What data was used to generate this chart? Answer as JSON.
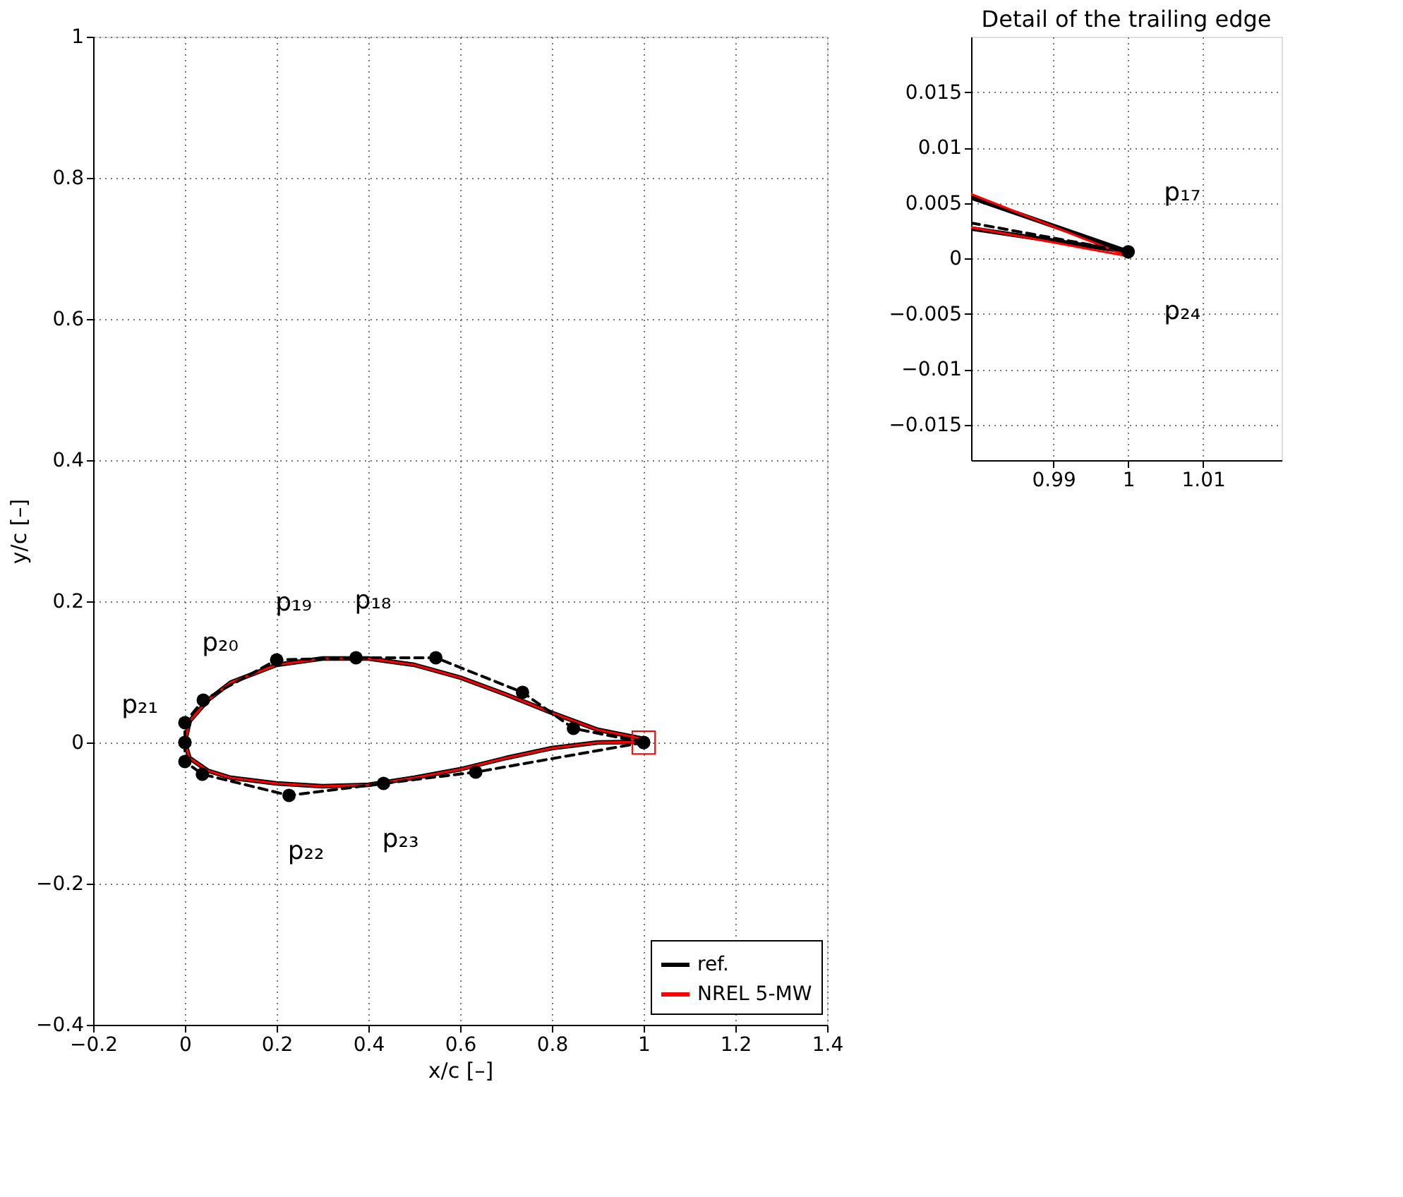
{
  "chart_data": [
    {
      "type": "line",
      "xlabel": "x/c [–]",
      "ylabel": "y/c [–]",
      "xlim": [
        -0.2,
        1.4
      ],
      "ylim": [
        -0.4,
        1
      ],
      "xticks": [
        -0.2,
        0,
        0.2,
        0.4,
        0.6,
        0.8,
        1,
        1.2,
        1.4
      ],
      "yticks": [
        -0.4,
        -0.2,
        0,
        0.2,
        0.4,
        0.6,
        0.8,
        1
      ],
      "grid": true,
      "legend": "bottom right",
      "series": [
        {
          "name": "ref.",
          "color": "#000000",
          "x": [
            1.0,
            0.9,
            0.8,
            0.7,
            0.6,
            0.5,
            0.4,
            0.3,
            0.2,
            0.1,
            0.05,
            0.01,
            0.0,
            0.01,
            0.05,
            0.1,
            0.2,
            0.3,
            0.4,
            0.5,
            0.6,
            0.7,
            0.8,
            0.9,
            1.0
          ],
          "values": [
            0.005,
            0.018,
            0.042,
            0.068,
            0.092,
            0.11,
            0.119,
            0.119,
            0.11,
            0.085,
            0.06,
            0.03,
            0.0,
            -0.022,
            -0.04,
            -0.05,
            -0.058,
            -0.062,
            -0.06,
            -0.05,
            -0.038,
            -0.022,
            -0.008,
            0.0,
            0.001
          ]
        },
        {
          "name": "NREL 5-MW",
          "color": "#ff0000",
          "x": [
            1.0,
            0.9,
            0.8,
            0.7,
            0.6,
            0.5,
            0.4,
            0.3,
            0.2,
            0.1,
            0.05,
            0.01,
            0.0,
            0.01,
            0.05,
            0.1,
            0.2,
            0.3,
            0.4,
            0.5,
            0.6,
            0.7,
            0.8,
            0.9,
            1.0
          ],
          "values": [
            0.005,
            0.018,
            0.042,
            0.068,
            0.092,
            0.11,
            0.119,
            0.119,
            0.11,
            0.085,
            0.06,
            0.03,
            0.0,
            -0.022,
            -0.04,
            -0.05,
            -0.058,
            -0.062,
            -0.06,
            -0.05,
            -0.038,
            -0.022,
            -0.008,
            0.0,
            0.001
          ]
        },
        {
          "color": "#000000",
          "line_style": "dashed",
          "marker": "circle",
          "x": [
            1.0,
            0.847,
            0.736,
            0.547,
            0.373,
            0.2,
            0.04,
            0.0,
            0.0
          ],
          "values": [
            0.0,
            0.02,
            0.071,
            0.12,
            0.12,
            0.117,
            0.06,
            0.028,
            0.0
          ]
        },
        {
          "color": "#000000",
          "line_style": "dashed",
          "marker": "circle",
          "x": [
            0.0,
            0.0,
            0.038,
            0.227,
            0.433,
            0.634,
            1.0
          ],
          "values": [
            0.0,
            -0.027,
            -0.045,
            -0.075,
            -0.058,
            -0.042,
            0.0
          ]
        },
        {
          "type": "scatter",
          "marker": "square",
          "color": "#ff0000",
          "x": [
            1.0
          ],
          "values": [
            0.0
          ]
        }
      ],
      "annotations": [
        {
          "text": "p₁₈",
          "x": 0.373,
          "y": 0.12
        },
        {
          "text": "p₁₉",
          "x": 0.2,
          "y": 0.117
        },
        {
          "text": "p₂₀",
          "x": 0.04,
          "y": 0.06
        },
        {
          "text": "p₂₁",
          "x": 0.0,
          "y": 0.028
        },
        {
          "text": "p₂₂",
          "x": 0.227,
          "y": -0.075
        },
        {
          "text": "p₂₃",
          "x": 0.433,
          "y": -0.058
        }
      ]
    },
    {
      "type": "line",
      "title": "Detail of the trailing edge",
      "xlim": [
        0.979,
        1.0205
      ],
      "ylim": [
        -0.0182,
        0.02
      ],
      "xticks": [
        0.99,
        1,
        1.01
      ],
      "yticks": [
        -0.015,
        -0.01,
        -0.005,
        0,
        0.005,
        0.01,
        0.015
      ],
      "grid": true,
      "series": [
        {
          "color": "#000000",
          "x": [
            0.979,
            1.0,
            0.979
          ],
          "values": [
            0.0055,
            0.0006,
            0.0027
          ]
        },
        {
          "color": "#ff0000",
          "x": [
            0.979,
            1.0,
            0.979
          ],
          "values": [
            0.0058,
            0.0002,
            0.0028
          ]
        },
        {
          "color": "#000000",
          "line_style": "dashed",
          "x": [
            0.979,
            1.0
          ],
          "values": [
            0.0032,
            0.0006
          ]
        },
        {
          "type": "scatter",
          "marker": "circle",
          "color": "#000000",
          "x": [
            1.0
          ],
          "values": [
            0.0006
          ]
        }
      ],
      "annotations": [
        "p₁₇",
        "p₂₄"
      ]
    }
  ]
}
